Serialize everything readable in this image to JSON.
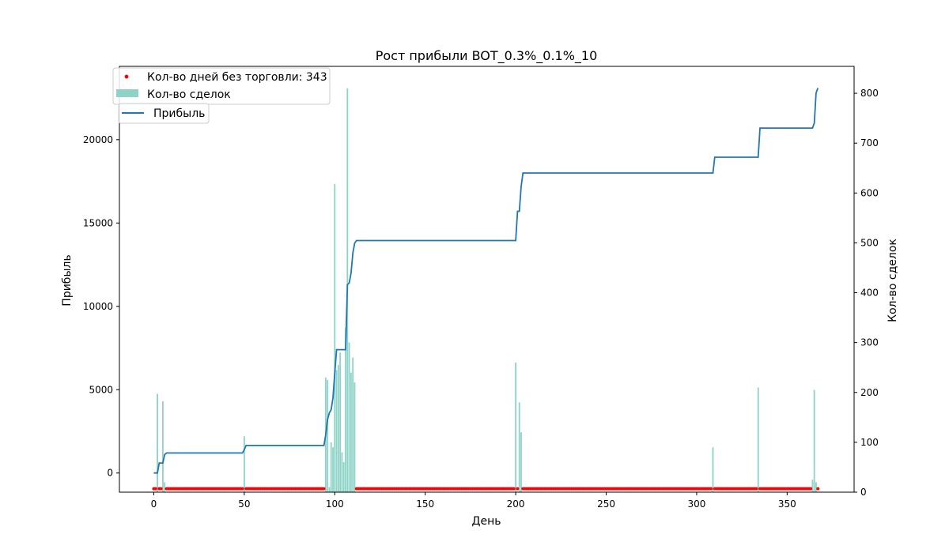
{
  "chart_data": {
    "type": "line",
    "title": "Рост прибыли BOT_0.3%_0.1%_10",
    "xlabel": "День",
    "ylabel": "Прибыль",
    "y2label": "Кол-во сделок",
    "xlim": [
      -19,
      387
    ],
    "ylim": [
      -1150,
      24400
    ],
    "y2lim": [
      0,
      854
    ],
    "xticks": [
      0,
      50,
      100,
      150,
      200,
      250,
      300,
      350
    ],
    "yticks": [
      0,
      5000,
      10000,
      15000,
      20000
    ],
    "y2ticks": [
      0,
      100,
      200,
      300,
      400,
      500,
      600,
      700,
      800
    ],
    "grid": false,
    "legend_position": "top-left",
    "colors": {
      "profit": "#1f77b4",
      "trades": "#8dd3c7",
      "no_trade": "#ff0000"
    },
    "legend": {
      "no_trade_label": "Кол-во дней без торговли: 343",
      "trades_label": "Кол-во сделок",
      "profit_label": "Прибыль"
    },
    "profit_series": {
      "name": "Прибыль",
      "x": [
        0,
        2,
        3,
        4,
        5,
        6,
        7,
        49,
        50,
        51,
        94,
        95,
        96,
        97,
        98,
        99,
        100,
        101,
        102,
        106,
        107,
        108,
        109,
        110,
        111,
        112,
        200,
        201,
        202,
        203,
        204,
        309,
        310,
        334,
        335,
        364,
        365,
        366,
        367
      ],
      "y": [
        0,
        0,
        600,
        600,
        600,
        1100,
        1200,
        1200,
        1400,
        1650,
        1650,
        2300,
        3200,
        3600,
        3800,
        4500,
        6000,
        7400,
        7400,
        7400,
        11300,
        11400,
        12000,
        13200,
        13800,
        13950,
        13950,
        15700,
        15700,
        17200,
        18000,
        18000,
        18950,
        18950,
        20700,
        20700,
        21000,
        22800,
        23100
      ]
    },
    "trades_series": {
      "name": "Кол-во сделок",
      "x": [
        2,
        5,
        6,
        50,
        95,
        96,
        97,
        98,
        99,
        100,
        101,
        102,
        103,
        104,
        105,
        106,
        107,
        108,
        109,
        110,
        111,
        200,
        202,
        203,
        309,
        334,
        364,
        365,
        366
      ],
      "y": [
        197,
        182,
        20,
        112,
        230,
        225,
        10,
        100,
        90,
        618,
        245,
        255,
        280,
        80,
        60,
        330,
        810,
        300,
        240,
        270,
        220,
        260,
        180,
        120,
        90,
        210,
        25,
        205,
        20
      ]
    },
    "no_trade_days": {
      "name": "Кол-во дней без торговли",
      "count": 343,
      "y": 7,
      "x_from": 0,
      "x_to": 367,
      "exclude": [
        2,
        5,
        6,
        50,
        95,
        96,
        97,
        98,
        99,
        100,
        101,
        102,
        103,
        104,
        105,
        106,
        107,
        108,
        109,
        110,
        111,
        200,
        202,
        203,
        309,
        334,
        364,
        365,
        366
      ]
    }
  }
}
